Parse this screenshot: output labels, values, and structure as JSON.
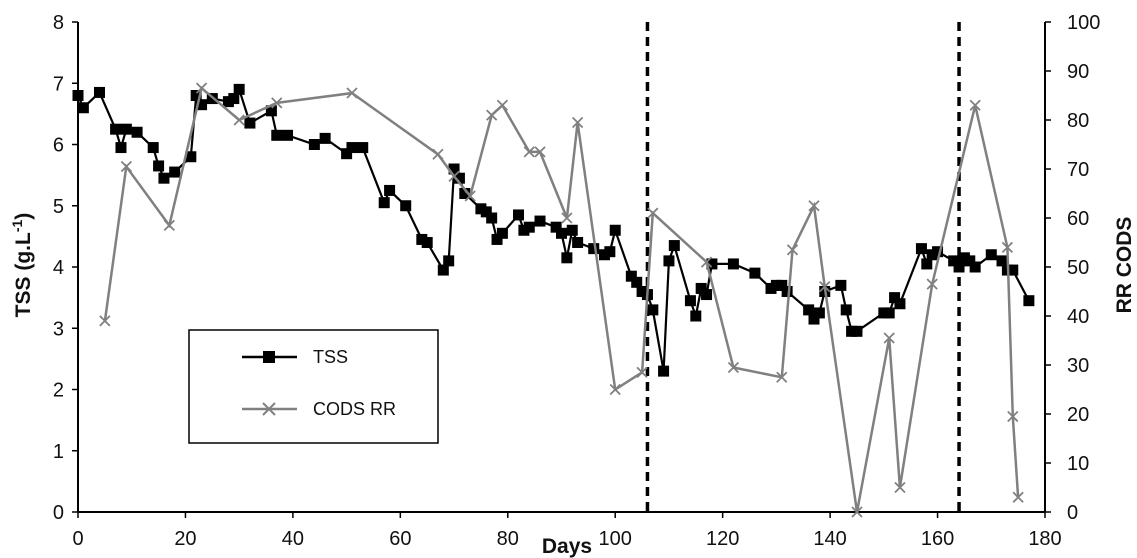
{
  "chart_data": {
    "type": "line",
    "xlabel": "Days",
    "ylabel_left": "TSS (g.L",
    "ylabel_left_sup": "-1",
    "ylabel_left_close": ")",
    "ylabel_right": "RR CODS",
    "xlim": [
      0,
      180
    ],
    "ylim_left": [
      0,
      8
    ],
    "ylim_right": [
      0,
      100
    ],
    "x_ticks": [
      "0",
      "20",
      "40",
      "60",
      "80",
      "100",
      "120",
      "140",
      "160",
      "180"
    ],
    "y_left_ticks": [
      "0",
      "1",
      "2",
      "3",
      "4",
      "5",
      "6",
      "7",
      "8"
    ],
    "y_right_ticks": [
      "0",
      "10",
      "20",
      "30",
      "40",
      "50",
      "60",
      "70",
      "80",
      "90",
      "100"
    ],
    "grid": false,
    "legend_position": "lower-left",
    "vertical_lines": [
      106,
      164
    ],
    "series": [
      {
        "name": "TSS",
        "axis": "left",
        "color": "#000000",
        "marker": "square",
        "x": [
          0,
          1,
          4,
          7,
          8,
          9,
          11,
          14,
          15,
          16,
          18,
          21,
          22,
          23,
          25,
          28,
          29,
          30,
          32,
          36,
          37,
          39,
          44,
          46,
          50,
          51,
          53,
          57,
          58,
          61,
          64,
          65,
          68,
          69,
          70,
          71,
          72,
          75,
          76,
          77,
          78,
          79,
          82,
          83,
          84,
          86,
          89,
          90,
          91,
          92,
          93,
          96,
          98,
          99,
          100,
          103,
          104,
          105,
          106,
          107,
          109,
          110,
          111,
          114,
          115,
          116,
          117,
          118,
          122,
          126,
          129,
          130,
          131,
          132,
          136,
          137,
          138,
          139,
          142,
          143,
          144,
          145,
          150,
          151,
          152,
          153,
          157,
          158,
          159,
          160,
          163,
          164,
          165,
          166,
          167,
          170,
          172,
          173,
          174,
          177
        ],
        "y": [
          6.8,
          6.6,
          6.85,
          6.25,
          5.95,
          6.25,
          6.2,
          5.95,
          5.65,
          5.45,
          5.55,
          5.8,
          6.8,
          6.65,
          6.75,
          6.7,
          6.75,
          6.9,
          6.35,
          6.55,
          6.15,
          6.15,
          6.0,
          6.1,
          5.85,
          5.95,
          5.95,
          5.05,
          5.25,
          5.0,
          4.45,
          4.4,
          3.95,
          4.1,
          5.6,
          5.45,
          5.2,
          4.95,
          4.9,
          4.8,
          4.45,
          4.55,
          4.85,
          4.6,
          4.65,
          4.75,
          4.65,
          4.55,
          4.15,
          4.6,
          4.4,
          4.3,
          4.2,
          4.25,
          4.6,
          3.85,
          3.75,
          3.6,
          3.55,
          3.3,
          2.3,
          4.1,
          4.35,
          3.45,
          3.2,
          3.65,
          3.55,
          4.05,
          4.05,
          3.9,
          3.65,
          3.7,
          3.7,
          3.6,
          3.3,
          3.15,
          3.25,
          3.6,
          3.7,
          3.3,
          2.95,
          2.95,
          3.25,
          3.25,
          3.5,
          3.4,
          4.3,
          4.05,
          4.2,
          4.25,
          4.1,
          4.0,
          4.15,
          4.1,
          4.0,
          4.2,
          4.1,
          3.95,
          3.95,
          3.45
        ]
      },
      {
        "name": "CODS RR",
        "axis": "right",
        "color": "#808080",
        "marker": "x",
        "x": [
          5,
          9,
          17,
          23,
          30,
          37,
          51,
          67,
          70,
          73,
          77,
          79,
          84,
          86,
          91,
          93,
          100,
          105,
          107,
          117,
          122,
          131,
          133,
          137,
          139,
          145,
          151,
          153,
          159,
          167,
          173,
          174,
          175
        ],
        "y": [
          39,
          70.5,
          58.5,
          86.5,
          80,
          83.5,
          85.5,
          73,
          68.5,
          64.5,
          81,
          83,
          73.5,
          73.5,
          60,
          79.5,
          25,
          28.5,
          61,
          51,
          29.5,
          27.5,
          53.5,
          62.5,
          46,
          0,
          35.5,
          5,
          46.5,
          83,
          54,
          19.5,
          3
        ]
      }
    ]
  }
}
